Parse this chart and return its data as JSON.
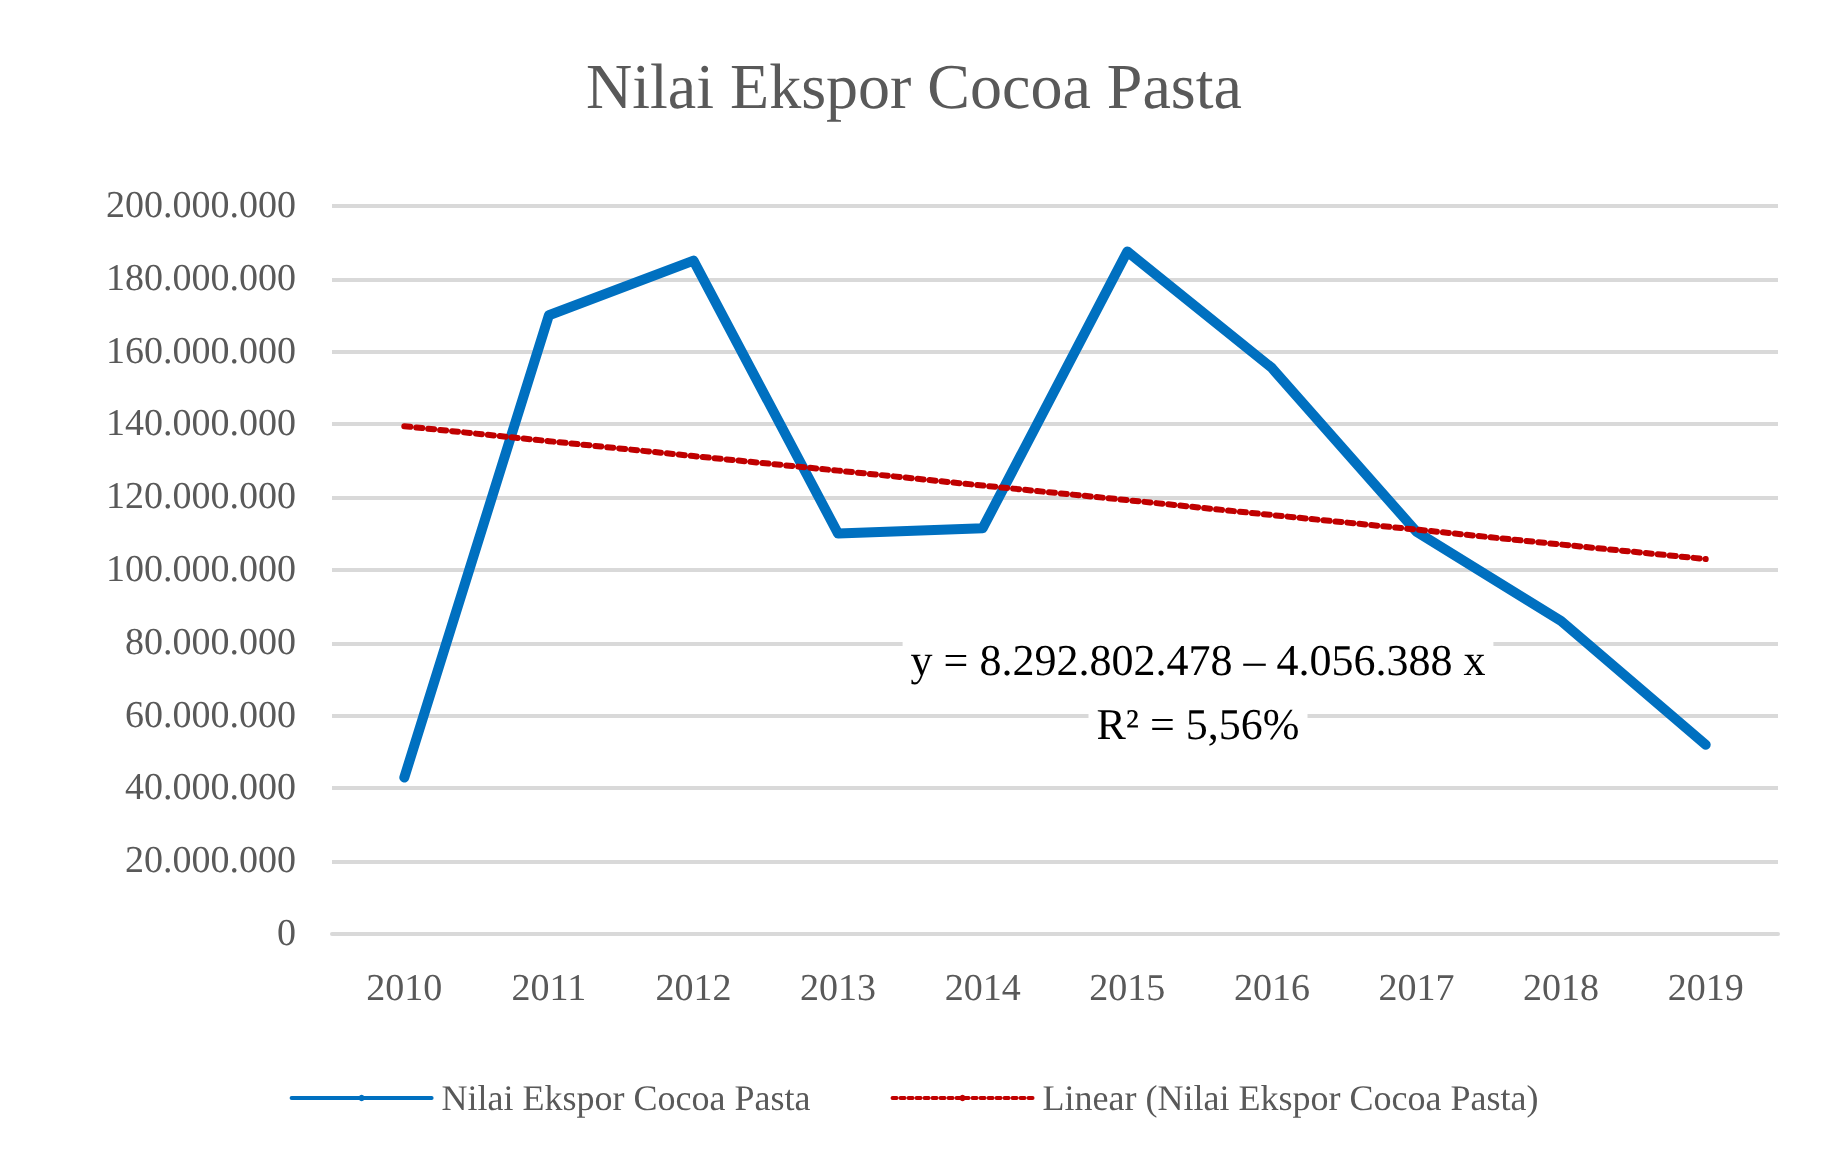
{
  "chart_data": {
    "type": "line",
    "title": "Nilai Ekspor Cocoa Pasta",
    "categories": [
      "2010",
      "2011",
      "2012",
      "2013",
      "2014",
      "2015",
      "2016",
      "2017",
      "2018",
      "2019"
    ],
    "series": [
      {
        "name": "Nilai Ekspor Cocoa Pasta",
        "color": "#0070c0",
        "line_style": "solid",
        "values": [
          43000000,
          170000000,
          185000000,
          110000000,
          111500000,
          187500000,
          155500000,
          110500000,
          86000000,
          52000000
        ]
      },
      {
        "name": "Linear (Nilai Ekspor Cocoa Pasta)",
        "color": "#c00000",
        "line_style": "dotted",
        "values": [
          139500000,
          135400000,
          131300000,
          127300000,
          123200000,
          119200000,
          115100000,
          111100000,
          107000000,
          103000000
        ]
      }
    ],
    "ylim": [
      0,
      200000000
    ],
    "yticks": [
      0,
      {
        "value": 20000000,
        "label": "20.000.000"
      },
      {
        "value": 40000000,
        "label": "40.000.000"
      },
      {
        "value": 60000000,
        "label": "60.000.000"
      },
      {
        "value": 80000000,
        "label": "80.000.000"
      },
      {
        "value": 100000000,
        "label": "100.000.000"
      },
      {
        "value": 120000000,
        "label": "120.000.000"
      },
      {
        "value": 140000000,
        "label": "140.000.000"
      },
      {
        "value": 160000000,
        "label": "160.000.000"
      },
      {
        "value": 180000000,
        "label": "180.000.000"
      },
      {
        "value": 200000000,
        "label": "200.000.000"
      }
    ],
    "grid": "y",
    "legend": "bottom",
    "marker": "none",
    "annotations": [
      "y = 8.292.802.478 – 4.056.388 x",
      "R² = 5,56%"
    ]
  }
}
